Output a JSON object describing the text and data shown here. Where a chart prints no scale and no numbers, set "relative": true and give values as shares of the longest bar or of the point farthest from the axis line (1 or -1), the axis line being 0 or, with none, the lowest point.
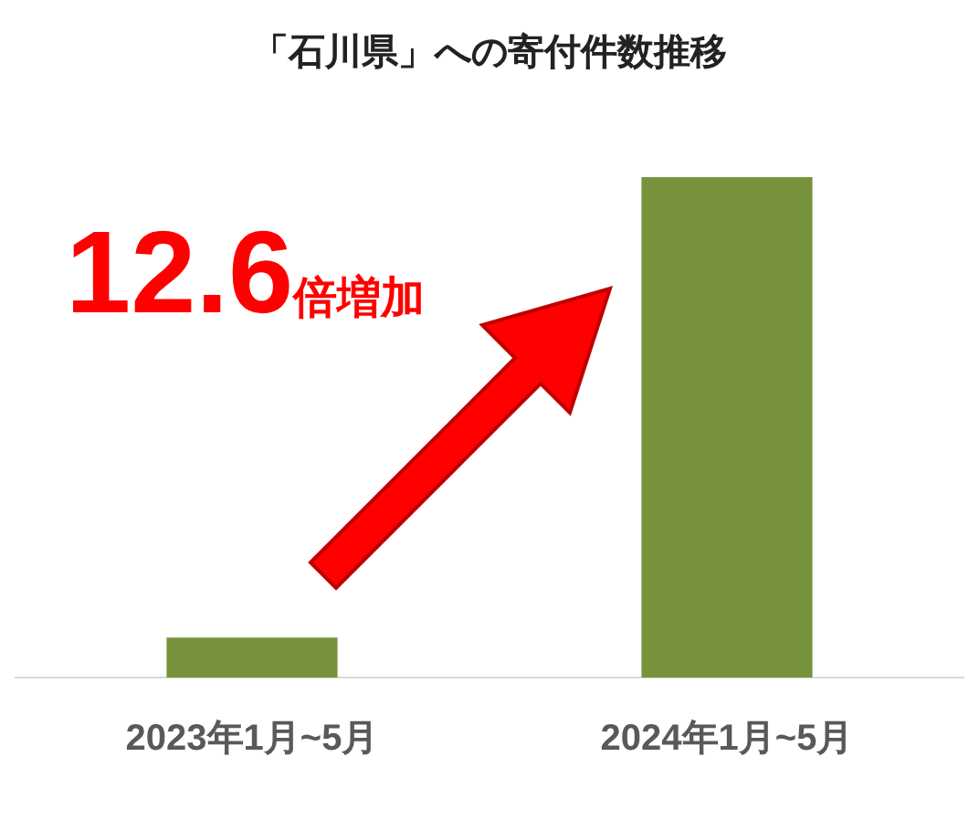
{
  "chart_data": {
    "type": "bar",
    "title": "「石川県」への寄付件数推移",
    "categories": [
      "2023年1月~5月",
      "2024年1月~5月"
    ],
    "values": [
      0.08,
      1
    ],
    "color": "#76933c",
    "relative": true,
    "grid": false,
    "legend": false,
    "annotations": [
      "12.6倍増加"
    ]
  }
}
